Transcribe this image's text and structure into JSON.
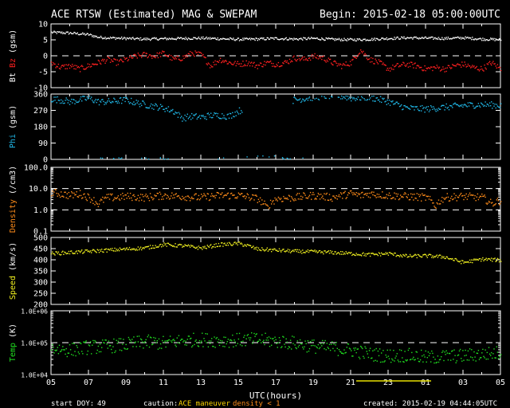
{
  "header": {
    "title": "ACE RTSW (Estimated) MAG & SWEPAM",
    "begin": "Begin: 2015-02-18 05:00:00UTC"
  },
  "footer": {
    "start_doy_label": "start DOY:",
    "start_doy_value": "49",
    "caution_label": "caution:",
    "caution_ace": "ACE maneuver",
    "caution_density": "density < 1",
    "created": "created: 2015-02-19 04:44:05UTC"
  },
  "colors": {
    "bt": "#ffffff",
    "bz": "#ff2020",
    "phi": "#20b8e8",
    "density": "#ff8c1a",
    "speed": "#f0f020",
    "temp": "#20e020",
    "caution_ace": "#ffd700",
    "caution_density": "#ff8c1a",
    "axis": "#ffffff",
    "maneuver_bar": "#e8e000"
  },
  "chart_data": {
    "type": "scatter",
    "xlabel": "UTC(hours)",
    "x_ticks": [
      "05",
      "07",
      "09",
      "11",
      "13",
      "15",
      "17",
      "19",
      "21",
      "23",
      "01",
      "03",
      "05"
    ],
    "xlim_hours": [
      0,
      24
    ],
    "maneuver_hours": [
      10.3,
      14.3
    ],
    "panels": [
      {
        "id": "mag",
        "ylabel_parts": [
          {
            "text": "Bt",
            "color": "#ffffff"
          },
          {
            "text": " ",
            "color": "#ffffff"
          },
          {
            "text": "Bz",
            "color": "#ff2020"
          },
          {
            "text": " (gsm)",
            "color": "#ffffff"
          }
        ],
        "ylim": [
          -10,
          10
        ],
        "scale": "linear",
        "ticks": [
          {
            "v": 10,
            "label": "10"
          },
          {
            "v": 5,
            "label": "5"
          },
          {
            "v": 0,
            "label": "0"
          },
          {
            "v": -5,
            "label": "-5"
          },
          {
            "v": -10,
            "label": "-10"
          }
        ],
        "dashed": [
          0
        ],
        "series": [
          {
            "name": "Bt",
            "color": "#ffffff",
            "x": [
              0,
              1,
              2,
              2.5,
              3,
              4,
              5,
              6,
              7,
              8,
              9,
              10,
              11,
              12,
              13,
              14,
              15,
              16,
              17,
              18,
              19,
              20,
              21,
              22,
              23,
              24
            ],
            "y": [
              7.5,
              7.3,
              6.8,
              6,
              5.8,
              5.6,
              5.4,
              5.5,
              5.6,
              5.7,
              5.5,
              5.3,
              5.4,
              5.6,
              5.4,
              5.6,
              5.3,
              5.2,
              5.3,
              5.6,
              5.8,
              5.7,
              5.6,
              5.8,
              5.4,
              5.2
            ],
            "jitter": 0.4
          },
          {
            "name": "Bz",
            "color": "#ff2020",
            "x": [
              0,
              0.5,
              1,
              1.5,
              2,
              2.5,
              3,
              3.5,
              4,
              4.5,
              5,
              5.5,
              6,
              6.5,
              7,
              7.5,
              8,
              8.5,
              9,
              9.5,
              10,
              10.5,
              11,
              11.5,
              12,
              12.5,
              13,
              13.5,
              14,
              14.5,
              15,
              15.5,
              16,
              16.5,
              17,
              17.5,
              18,
              18.5,
              19,
              19.5,
              20,
              20.5,
              21,
              21.5,
              22,
              22.5,
              23,
              23.5,
              24
            ],
            "y": [
              -2,
              -3.5,
              -3,
              -4,
              -3,
              -2,
              -1,
              -2,
              -1,
              0,
              0.5,
              0,
              1,
              -1,
              -0.5,
              1,
              0.5,
              -3,
              -1,
              -2,
              -2.5,
              -2,
              -3,
              -2,
              -2.5,
              -2,
              -0.5,
              -1,
              0,
              -0.5,
              -2,
              -3,
              -2,
              2,
              -1,
              -2,
              -4,
              -3,
              -2.5,
              -3,
              -4,
              -3.5,
              -4,
              -3,
              -2.5,
              -3.5,
              -4,
              -2,
              -4
            ],
            "jitter": 0.9
          }
        ]
      },
      {
        "id": "phi",
        "ylabel_parts": [
          {
            "text": "Phi",
            "color": "#20b8e8"
          },
          {
            "text": " (gsm)",
            "color": "#ffffff"
          }
        ],
        "ylim": [
          0,
          360
        ],
        "scale": "linear",
        "ticks": [
          {
            "v": 360,
            "label": "360"
          },
          {
            "v": 270,
            "label": "270"
          },
          {
            "v": 180,
            "label": "180"
          },
          {
            "v": 90,
            "label": "90"
          },
          {
            "v": 0,
            "label": "0"
          }
        ],
        "dashed": [],
        "series": [
          {
            "name": "Phi",
            "color": "#20b8e8",
            "x": [
              0,
              0.5,
              1,
              1.5,
              2,
              2.5,
              3,
              3.5,
              4,
              4.5,
              5,
              5.5,
              6,
              6.5,
              7,
              7.5,
              8,
              8.5,
              9,
              9.5,
              10,
              13,
              14,
              15,
              15.5,
              16,
              17,
              18,
              19,
              20,
              21,
              22,
              23,
              24
            ],
            "y": [
              335,
              330,
              320,
              330,
              340,
              320,
              320,
              325,
              330,
              315,
              305,
              295,
              285,
              270,
              230,
              240,
              235,
              245,
              245,
              240,
              270,
              330,
              345,
              355,
              350,
              340,
              345,
              320,
              285,
              280,
              290,
              300,
              305,
              300
            ],
            "jitter": 18
          },
          {
            "name": "Phi-low",
            "color": "#20b8e8",
            "x": [
              2.5,
              3.5,
              5,
              6,
              9,
              10.5,
              11.2,
              11.8,
              12.5,
              13.3
            ],
            "y": [
              5,
              10,
              5,
              8,
              5,
              12,
              28,
              18,
              8,
              5
            ],
            "jitter": 6
          }
        ]
      },
      {
        "id": "density",
        "ylabel_parts": [
          {
            "text": "Density",
            "color": "#ff8c1a"
          },
          {
            "text": " (/cm3)",
            "color": "#ffffff"
          }
        ],
        "ylim": [
          0.1,
          100
        ],
        "scale": "log",
        "ticks": [
          {
            "v": 100,
            "label": "100.0"
          },
          {
            "v": 10,
            "label": "10.0"
          },
          {
            "v": 1,
            "label": "1.0"
          },
          {
            "v": 0.1,
            "label": "0.1"
          }
        ],
        "dashed": [
          10,
          1
        ],
        "series": [
          {
            "name": "Density",
            "color": "#ff8c1a",
            "x": [
              0,
              0.5,
              1,
              1.5,
              2,
              2.5,
              3,
              3.5,
              4,
              5,
              6,
              7,
              8,
              9,
              10,
              11,
              11.5,
              12,
              13,
              14,
              15,
              15.5,
              16,
              16.5,
              17,
              18,
              19,
              20,
              20.5,
              21,
              22,
              23,
              23.5,
              24
            ],
            "y": [
              7,
              6,
              5,
              6,
              4,
              2,
              4,
              4,
              4.5,
              4,
              5,
              4.5,
              4,
              5,
              5,
              3.5,
              1.3,
              3.5,
              4,
              5,
              4,
              5,
              6,
              5,
              6,
              5,
              4.5,
              4,
              1.6,
              4,
              4.5,
              4,
              2,
              3
            ],
            "jitter": 0.18
          }
        ]
      },
      {
        "id": "speed",
        "ylabel_parts": [
          {
            "text": "Speed",
            "color": "#f0f020"
          },
          {
            "text": " (km/s)",
            "color": "#ffffff"
          }
        ],
        "ylim": [
          200,
          500
        ],
        "scale": "linear",
        "ticks": [
          {
            "v": 500,
            "label": "500"
          },
          {
            "v": 450,
            "label": "450"
          },
          {
            "v": 400,
            "label": "400"
          },
          {
            "v": 350,
            "label": "350"
          },
          {
            "v": 300,
            "label": "300"
          },
          {
            "v": 250,
            "label": "250"
          },
          {
            "v": 200,
            "label": "200"
          }
        ],
        "dashed": [],
        "series": [
          {
            "name": "Speed",
            "color": "#f0f020",
            "x": [
              0,
              1,
              2,
              3,
              4,
              5,
              6,
              7,
              8,
              9,
              10,
              10.5,
              11,
              12,
              13,
              14,
              15,
              16,
              17,
              18,
              19,
              20,
              21,
              22,
              23,
              24
            ],
            "y": [
              430,
              435,
              440,
              445,
              450,
              455,
              470,
              465,
              455,
              470,
              475,
              465,
              450,
              445,
              440,
              438,
              435,
              430,
              425,
              430,
              418,
              420,
              415,
              390,
              405,
              400
            ],
            "jitter": 8
          }
        ]
      },
      {
        "id": "temp",
        "ylabel_parts": [
          {
            "text": "Temp",
            "color": "#20e020"
          },
          {
            "text": " (K)",
            "color": "#ffffff"
          }
        ],
        "ylim": [
          10000,
          1000000
        ],
        "scale": "log",
        "ticks": [
          {
            "v": 1000000,
            "label": "1.0E+06"
          },
          {
            "v": 100000,
            "label": "1.0E+05"
          },
          {
            "v": 10000,
            "label": "1.0E+04"
          }
        ],
        "dashed": [
          100000
        ],
        "series": [
          {
            "name": "Temp",
            "color": "#20e020",
            "x": [
              0,
              1,
              2,
              3,
              4,
              5,
              6,
              7,
              8,
              9,
              10,
              11,
              12,
              13,
              14,
              15,
              16,
              17,
              18,
              19,
              20,
              21,
              22,
              23,
              24
            ],
            "y": [
              70000,
              60000,
              75000,
              80000,
              90000,
              110000,
              100000,
              120000,
              130000,
              120000,
              125000,
              130000,
              115000,
              100000,
              80000,
              70000,
              60000,
              45000,
              40000,
              42000,
              35000,
              38000,
              40000,
              45000,
              50000
            ],
            "jitter": 0.22
          }
        ]
      }
    ]
  }
}
